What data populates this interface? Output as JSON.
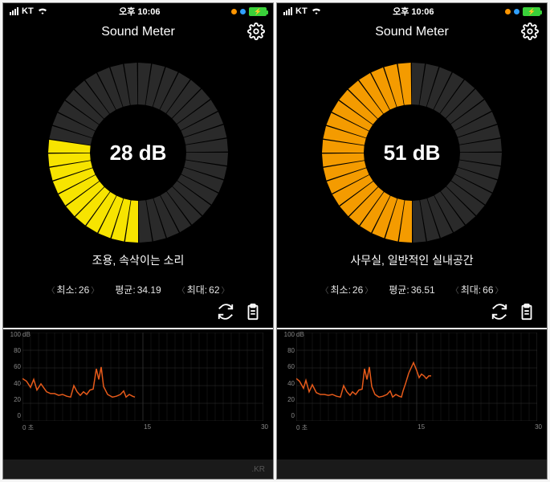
{
  "screens": [
    {
      "status": {
        "carrier": "KT",
        "time": "오후 10:06"
      },
      "title": "Sound Meter",
      "gauge": {
        "value": 28,
        "unit": "dB",
        "percent": 0.28,
        "fill_color": "#f7e400",
        "track_color": "#2a2a2a",
        "bg": "#000000"
      },
      "description": "조용, 속삭이는 소리",
      "stats": {
        "min_label": "최소:",
        "min": "26",
        "avg_label": "평균:",
        "avg": "34.19",
        "max_label": "최대:",
        "max": "62"
      },
      "chart": {
        "y_ticks": [
          "100",
          "80",
          "60",
          "40",
          "20",
          "0"
        ],
        "y_unit": "dB",
        "x_ticks": [
          "0",
          "15",
          "30"
        ],
        "x_unit": "초",
        "line_color": "#e65a1a",
        "grid_color": "#333333",
        "ylim": [
          0,
          100
        ],
        "xlim": [
          0,
          30
        ],
        "points": [
          [
            0,
            48
          ],
          [
            0.5,
            45
          ],
          [
            1,
            38
          ],
          [
            1.4,
            47
          ],
          [
            1.8,
            35
          ],
          [
            2.3,
            42
          ],
          [
            3,
            33
          ],
          [
            3.5,
            31
          ],
          [
            4,
            31
          ],
          [
            4.5,
            29
          ],
          [
            5,
            30
          ],
          [
            5.5,
            28
          ],
          [
            6,
            27
          ],
          [
            6.4,
            40
          ],
          [
            6.8,
            33
          ],
          [
            7.2,
            29
          ],
          [
            7.6,
            33
          ],
          [
            8,
            30
          ],
          [
            8.4,
            35
          ],
          [
            8.8,
            36
          ],
          [
            9.2,
            59
          ],
          [
            9.5,
            47
          ],
          [
            9.8,
            61
          ],
          [
            10.1,
            39
          ],
          [
            10.6,
            30
          ],
          [
            11.2,
            27
          ],
          [
            11.7,
            28
          ],
          [
            12.2,
            30
          ],
          [
            12.6,
            34
          ],
          [
            12.9,
            27
          ],
          [
            13.3,
            30
          ],
          [
            13.7,
            28
          ],
          [
            14,
            27
          ]
        ]
      },
      "footer": ".KR"
    },
    {
      "status": {
        "carrier": "KT",
        "time": "오후 10:06"
      },
      "title": "Sound Meter",
      "gauge": {
        "value": 51,
        "unit": "dB",
        "percent": 0.51,
        "fill_color": "#f49b00",
        "track_color": "#2a2a2a",
        "bg": "#000000"
      },
      "description": "사무실, 일반적인 실내공간",
      "stats": {
        "min_label": "최소:",
        "min": "26",
        "avg_label": "평균:",
        "avg": "36.51",
        "max_label": "최대:",
        "max": "66"
      },
      "chart": {
        "y_ticks": [
          "100",
          "80",
          "60",
          "40",
          "20",
          "0"
        ],
        "y_unit": "dB",
        "x_ticks": [
          "0",
          "15",
          "30"
        ],
        "x_unit": "초",
        "line_color": "#e65a1a",
        "grid_color": "#333333",
        "ylim": [
          0,
          100
        ],
        "xlim": [
          0,
          30
        ],
        "points": [
          [
            0,
            48
          ],
          [
            0.4,
            45
          ],
          [
            0.9,
            37
          ],
          [
            1.2,
            46
          ],
          [
            1.6,
            33
          ],
          [
            2,
            41
          ],
          [
            2.5,
            32
          ],
          [
            3,
            30
          ],
          [
            3.5,
            30
          ],
          [
            4,
            29
          ],
          [
            4.5,
            30
          ],
          [
            5,
            28
          ],
          [
            5.5,
            27
          ],
          [
            5.9,
            40
          ],
          [
            6.3,
            33
          ],
          [
            6.7,
            29
          ],
          [
            7,
            33
          ],
          [
            7.4,
            30
          ],
          [
            7.8,
            35
          ],
          [
            8.2,
            36
          ],
          [
            8.5,
            59
          ],
          [
            8.8,
            47
          ],
          [
            9.1,
            61
          ],
          [
            9.4,
            39
          ],
          [
            9.8,
            30
          ],
          [
            10.3,
            27
          ],
          [
            10.8,
            28
          ],
          [
            11.3,
            30
          ],
          [
            11.7,
            34
          ],
          [
            12,
            27
          ],
          [
            12.4,
            30
          ],
          [
            12.8,
            28
          ],
          [
            13.1,
            27
          ],
          [
            13.3,
            34
          ],
          [
            13.6,
            42
          ],
          [
            14,
            54
          ],
          [
            14.3,
            60
          ],
          [
            14.6,
            66
          ],
          [
            15,
            57
          ],
          [
            15.3,
            49
          ],
          [
            15.6,
            53
          ],
          [
            15.9,
            51
          ],
          [
            16.2,
            48
          ],
          [
            16.5,
            51
          ],
          [
            16.8,
            51
          ]
        ]
      },
      "footer": ""
    }
  ]
}
